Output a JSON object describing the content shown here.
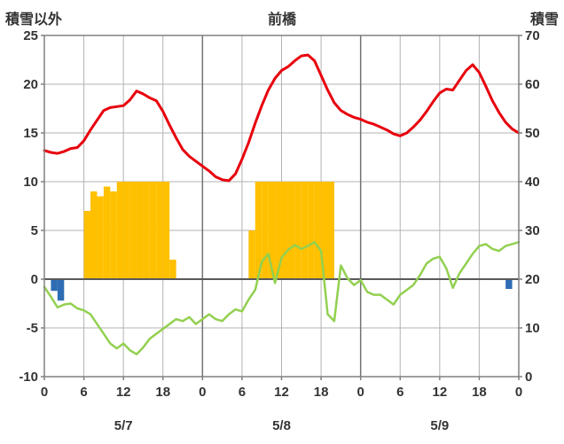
{
  "header": {
    "left_axis_label": "積雪以外",
    "title": "前橋",
    "right_axis_label": "積雪"
  },
  "colors": {
    "red_line": "#e8000d",
    "green_line": "#92d050",
    "orange_bar": "#ffc000",
    "blue_bar": "#2e6db4",
    "grid": "#b3b3b3",
    "grid_dark": "#737373",
    "zero_line": "#595959",
    "border": "#808080",
    "text": "#333333"
  },
  "chart_data": {
    "type": "line",
    "title": "前橋",
    "x_hours_range": [
      0,
      72
    ],
    "grid": {
      "horizontal_step": 5,
      "vertical_step_hours": 6
    },
    "left_axis": {
      "label": "積雪以外",
      "min": -10,
      "max": 25,
      "ticks": [
        25,
        20,
        15,
        10,
        5,
        0,
        -5,
        -10
      ]
    },
    "right_axis": {
      "label": "積雪",
      "min": 0,
      "max": 70,
      "ticks": [
        70,
        60,
        50,
        40,
        30,
        20,
        10,
        0
      ]
    },
    "x_axis": {
      "tick_hours": [
        0,
        6,
        12,
        18,
        24,
        30,
        36,
        42,
        48,
        54,
        60,
        66,
        72
      ],
      "tick_labels": [
        "0",
        "6",
        "12",
        "18",
        "0",
        "6",
        "12",
        "18",
        "0",
        "6",
        "12",
        "18",
        "0"
      ],
      "day_labels": [
        {
          "label": "5/7",
          "hour": 12
        },
        {
          "label": "5/8",
          "hour": 36
        },
        {
          "label": "5/9",
          "hour": 60
        }
      ]
    },
    "series": [
      {
        "name": "orange-bars",
        "type": "bar",
        "axis": "left",
        "color_key": "orange_bar",
        "values": [
          {
            "hour": 6,
            "value": 7
          },
          {
            "hour": 7,
            "value": 9
          },
          {
            "hour": 8,
            "value": 8.5
          },
          {
            "hour": 9,
            "value": 9.5
          },
          {
            "hour": 10,
            "value": 9
          },
          {
            "hour": 11,
            "value": 10
          },
          {
            "hour": 12,
            "value": 10
          },
          {
            "hour": 13,
            "value": 10
          },
          {
            "hour": 14,
            "value": 10
          },
          {
            "hour": 15,
            "value": 10
          },
          {
            "hour": 16,
            "value": 10
          },
          {
            "hour": 17,
            "value": 10
          },
          {
            "hour": 18,
            "value": 10
          },
          {
            "hour": 19,
            "value": 2
          },
          {
            "hour": 31,
            "value": 5
          },
          {
            "hour": 32,
            "value": 10
          },
          {
            "hour": 33,
            "value": 10
          },
          {
            "hour": 34,
            "value": 10
          },
          {
            "hour": 35,
            "value": 10
          },
          {
            "hour": 36,
            "value": 10
          },
          {
            "hour": 37,
            "value": 10
          },
          {
            "hour": 38,
            "value": 10
          },
          {
            "hour": 39,
            "value": 10
          },
          {
            "hour": 40,
            "value": 10
          },
          {
            "hour": 41,
            "value": 10
          },
          {
            "hour": 42,
            "value": 10
          },
          {
            "hour": 43,
            "value": 10
          }
        ]
      },
      {
        "name": "blue-bars",
        "type": "bar",
        "axis": "left",
        "color_key": "blue_bar",
        "values": [
          {
            "hour": 1,
            "value": -1.2
          },
          {
            "hour": 2,
            "value": -2.2
          },
          {
            "hour": 70,
            "value": -1.0
          }
        ]
      },
      {
        "name": "green-line",
        "type": "line",
        "axis": "left",
        "color_key": "green_line",
        "stroke_width": 2.5,
        "x_start_hour": 0,
        "x_step_hours": 1,
        "values": [
          -0.8,
          -1.8,
          -2.9,
          -2.6,
          -2.5,
          -3.0,
          -3.2,
          -3.6,
          -4.6,
          -5.6,
          -6.6,
          -7.1,
          -6.6,
          -7.3,
          -7.7,
          -7.0,
          -6.1,
          -5.6,
          -5.1,
          -4.6,
          -4.1,
          -4.3,
          -3.9,
          -4.6,
          -4.1,
          -3.6,
          -4.1,
          -4.3,
          -3.6,
          -3.1,
          -3.3,
          -2.1,
          -1.1,
          1.8,
          2.6,
          -0.4,
          2.2,
          3.0,
          3.5,
          3.1,
          3.4,
          3.8,
          2.9,
          -3.6,
          -4.3,
          1.4,
          0.1,
          -0.6,
          -0.1,
          -1.3,
          -1.6,
          -1.6,
          -2.1,
          -2.6,
          -1.6,
          -1.1,
          -0.6,
          0.4,
          1.6,
          2.1,
          2.3,
          1.1,
          -0.9,
          0.6,
          1.6,
          2.6,
          3.4,
          3.6,
          3.1,
          2.9,
          3.4,
          3.6,
          3.8
        ]
      },
      {
        "name": "red-line",
        "type": "line",
        "axis": "left",
        "color_key": "red_line",
        "stroke_width": 3,
        "x_start_hour": 0,
        "x_step_hours": 1,
        "values": [
          13.2,
          13.0,
          12.9,
          13.1,
          13.4,
          13.5,
          14.2,
          15.3,
          16.3,
          17.3,
          17.6,
          17.7,
          17.8,
          18.4,
          19.3,
          19.0,
          18.6,
          18.3,
          17.2,
          15.8,
          14.5,
          13.3,
          12.6,
          12.1,
          11.6,
          11.1,
          10.5,
          10.2,
          10.1,
          10.8,
          12.3,
          14.0,
          16.0,
          17.8,
          19.4,
          20.6,
          21.4,
          21.8,
          22.4,
          22.9,
          23.0,
          22.4,
          20.9,
          19.4,
          18.1,
          17.3,
          16.9,
          16.6,
          16.4,
          16.1,
          15.9,
          15.6,
          15.3,
          14.9,
          14.7,
          15.0,
          15.6,
          16.3,
          17.2,
          18.2,
          19.1,
          19.5,
          19.4,
          20.4,
          21.4,
          22.0,
          21.2,
          19.8,
          18.3,
          17.1,
          16.1,
          15.4,
          15.0
        ]
      }
    ]
  }
}
